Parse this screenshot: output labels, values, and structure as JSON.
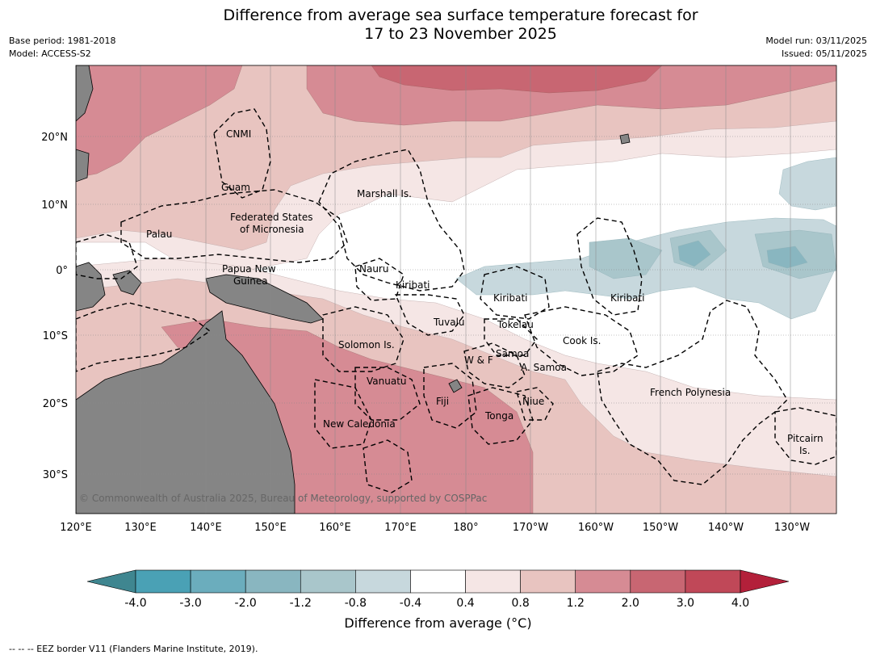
{
  "title": {
    "line1": "Difference from average sea surface temperature forecast for",
    "line2": "17 to 23 November 2025"
  },
  "meta": {
    "base_period": "Base period: 1981-2018",
    "model": "Model: ACCESS-S2",
    "model_run": "Model run: 03/11/2025",
    "issued": "Issued: 05/11/2025"
  },
  "copyright": "© Commonwealth of Australia 2025, Bureau of Meteorology, supported by COSPPac",
  "axes": {
    "lon_labels": [
      "120°E",
      "130°E",
      "140°E",
      "150°E",
      "160°E",
      "170°E",
      "180°",
      "170°W",
      "160°W",
      "150°W",
      "140°W",
      "130°W"
    ],
    "lat_labels": [
      "20°N",
      "10°N",
      "0°",
      "10°S",
      "20°S",
      "30°S"
    ]
  },
  "regions": [
    "CNMI",
    "Guam",
    "Marshall Is.",
    "Federated States",
    "of Micronesia",
    "Palau",
    "Papua New",
    "Guinea",
    "Nauru",
    "Kiribati",
    "Kiribati",
    "Kiribati",
    "Tuvalu",
    "Tokelau",
    "Solomon Is.",
    "Cook Is.",
    "Samoa",
    "W & F",
    "A. Samoa",
    "Vanuatu",
    "Fiji",
    "Niue",
    "French Polynesia",
    "Tonga",
    "New Caledonia",
    "Pitcairn",
    "Is."
  ],
  "colorbar": {
    "title": "Difference from average (°C)",
    "tick_labels": [
      "-4.0",
      "-3.0",
      "-2.0",
      "-1.2",
      "-0.8",
      "-0.4",
      "0.4",
      "0.8",
      "1.2",
      "2.0",
      "3.0",
      "4.0"
    ],
    "colors": [
      "#3f8690",
      "#4aa1b5",
      "#6badbd",
      "#89b6c0",
      "#a9c6cb",
      "#c7d8dd",
      "#ffffff",
      "#f5e6e5",
      "#e8c4c0",
      "#d68b94",
      "#c86672",
      "#c04858",
      "#b3203a"
    ]
  },
  "colors": {
    "land": "#858585",
    "ocean_neutral": "#ffffff"
  },
  "legend_note": "--  --  -- EEZ border V11 (Flanders Marine Institute, 2019)."
}
